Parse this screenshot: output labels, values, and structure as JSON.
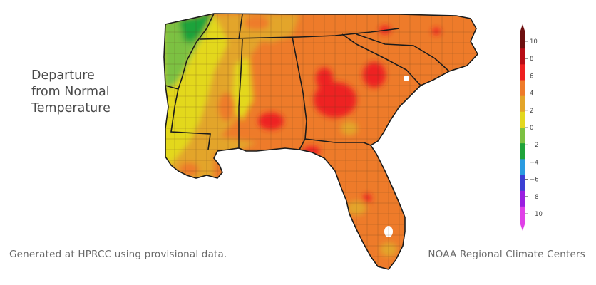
{
  "title": {
    "lines": [
      "Departure",
      "from Normal",
      "Temperature"
    ]
  },
  "footer": {
    "left": "Generated at HPRCC using provisional data.",
    "right": "NOAA Regional Climate Centers"
  },
  "legend": {
    "ticks": [
      "10",
      "8",
      "6",
      "4",
      "2",
      "0",
      "−2",
      "−4",
      "−6",
      "−8",
      "−10"
    ],
    "colors": [
      "#6e0f0f",
      "#b80d16",
      "#ee2020",
      "#ee7b2a",
      "#e3a52a",
      "#e3d81f",
      "#7cc142",
      "#1fa33a",
      "#2b9be0",
      "#3b3fd4",
      "#9a1ee0",
      "#e040e8"
    ]
  },
  "map": {
    "region": "Southeast US",
    "colors": {
      "dark_red": "#b80d16",
      "red": "#ee2020",
      "orange": "#ee7b2a",
      "light_orange": "#e3a52a",
      "yellow": "#e3d81f",
      "green": "#7cc142",
      "dark_green": "#1fa33a"
    }
  }
}
